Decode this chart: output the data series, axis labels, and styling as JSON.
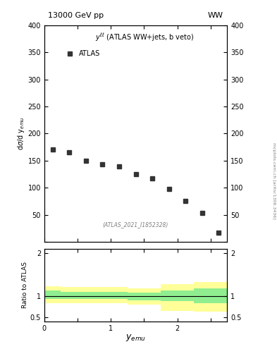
{
  "title_left": "13000 GeV pp",
  "title_right": "WW",
  "main_ylabel": "dσ/d y$_{emu}$",
  "legend_label": "ATLAS",
  "ratio_ylabel": "Ratio to ATLAS",
  "xlabel": "y$_{emu}$",
  "watermark": "(ATLAS_2021_I1852328)",
  "side_text": "mcplots.cern.ch [arXiv:1306.3436]",
  "data_x": [
    0.125,
    0.375,
    0.625,
    0.875,
    1.125,
    1.375,
    1.625,
    1.875,
    2.125,
    2.375,
    2.625
  ],
  "data_y": [
    170,
    165,
    150,
    143,
    140,
    125,
    117,
    98,
    75,
    53,
    17
  ],
  "main_ylim": [
    0,
    400
  ],
  "main_yticks": [
    0,
    50,
    100,
    150,
    200,
    250,
    300,
    350,
    400
  ],
  "ratio_ylim": [
    0.4,
    2.1
  ],
  "ratio_yticks": [
    0.5,
    1.0,
    2.0
  ],
  "ratio_yticklabels": [
    "0.5",
    "1",
    "2"
  ],
  "xlim": [
    0,
    2.75
  ],
  "xticks": [
    0,
    0.5,
    1.0,
    1.5,
    2.0,
    2.5
  ],
  "xticklabels": [
    "0",
    "",
    "1",
    "",
    "2",
    ""
  ],
  "green_band_x": [
    0.0,
    0.25,
    0.25,
    0.75,
    0.75,
    1.25,
    1.25,
    1.75,
    1.75,
    2.0,
    2.0,
    2.25,
    2.25,
    2.75
  ],
  "green_upper": [
    1.13,
    1.13,
    1.1,
    1.1,
    1.1,
    1.1,
    1.08,
    1.08,
    1.13,
    1.13,
    1.13,
    1.13,
    1.17,
    1.17
  ],
  "green_lower": [
    0.93,
    0.93,
    0.93,
    0.93,
    0.93,
    0.93,
    0.9,
    0.9,
    0.88,
    0.88,
    0.88,
    0.88,
    0.83,
    0.83
  ],
  "yellow_upper": [
    1.22,
    1.22,
    1.2,
    1.2,
    1.2,
    1.2,
    1.18,
    1.18,
    1.28,
    1.28,
    1.28,
    1.28,
    1.32,
    1.32
  ],
  "yellow_lower": [
    0.83,
    0.83,
    0.82,
    0.82,
    0.82,
    0.82,
    0.79,
    0.79,
    0.65,
    0.65,
    0.65,
    0.65,
    0.62,
    0.62
  ],
  "green_color": "#90EE90",
  "yellow_color": "#FFFF99",
  "marker_color": "#333333",
  "background_color": "#ffffff"
}
